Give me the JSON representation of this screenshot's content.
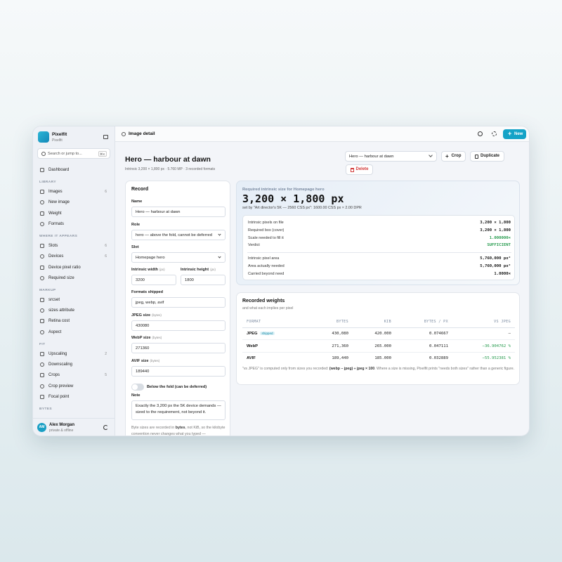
{
  "app": {
    "name": "Pixelfit",
    "sub": "Pixelfit"
  },
  "search": {
    "placeholder": "Search or jump to...",
    "shortcut": "⌘K"
  },
  "nav": [
    {
      "items": [
        {
          "label": "Dashboard"
        }
      ]
    },
    {
      "title": "LIBRARY",
      "items": [
        {
          "label": "Images",
          "count": 6
        },
        {
          "label": "New image"
        },
        {
          "label": "Weight"
        },
        {
          "label": "Formats"
        }
      ]
    },
    {
      "title": "WHERE IT APPEARS",
      "items": [
        {
          "label": "Slots",
          "count": 6
        },
        {
          "label": "Devices",
          "count": 6
        },
        {
          "label": "Device pixel ratio"
        },
        {
          "label": "Required size"
        }
      ]
    },
    {
      "title": "MARKUP",
      "items": [
        {
          "label": "srcset"
        },
        {
          "label": "sizes attribute"
        },
        {
          "label": "Retina cost"
        },
        {
          "label": "Aspect"
        }
      ]
    },
    {
      "title": "FIT",
      "items": [
        {
          "label": "Upscaling",
          "count": 2
        },
        {
          "label": "Downscaling"
        },
        {
          "label": "Crops",
          "count": 5
        },
        {
          "label": "Crop preview"
        },
        {
          "label": "Focal point"
        }
      ]
    },
    {
      "title": "BYTES",
      "items": []
    }
  ],
  "user": {
    "initials": "AM",
    "name": "Alex Morgan",
    "status": "private & offline"
  },
  "topbar": {
    "title": "Image detail",
    "new": "New"
  },
  "header": {
    "title": "Hero — harbour at dawn",
    "meta": "Intrinsic 3,200 × 1,800 px · 5.760 MP · 3 recorded formats",
    "select": "Hero — harbour at dawn",
    "crop": "Crop",
    "duplicate": "Duplicate",
    "delete": "Delete"
  },
  "record": {
    "title": "Record",
    "fields": [
      {
        "label": "Name",
        "value": "Hero — harbour at dawn"
      },
      {
        "label": "Role",
        "value": "hero — above the fold, cannot be deferred",
        "kind": "select"
      },
      {
        "label": "Slot",
        "value": "Homepage hero",
        "kind": "select"
      }
    ],
    "dims": [
      {
        "label": "Intrinsic width",
        "unit": "(px)",
        "value": 3200
      },
      {
        "label": "Intrinsic height",
        "unit": "(px)",
        "value": 1800
      }
    ],
    "sizes": [
      {
        "label": "Formats shipped",
        "value": "jpeg, webp, avif"
      },
      {
        "label": "JPEG size",
        "unit": "(bytes)",
        "value": 430080
      },
      {
        "label": "WebP size",
        "unit": "(bytes)",
        "value": 271360
      },
      {
        "label": "AVIF size",
        "unit": "(bytes)",
        "value": 189440
      }
    ],
    "toggle": "Below the fold (can be deferred)",
    "note_label": "Note",
    "note": "Exactly the 3,200 px the 5K device demands — sized to the requirement, not beyond it.",
    "footnote": [
      "Byte sizes are recorded in ",
      "bytes",
      ", not KiB, so the kilobyte convention never changes what you typed —"
    ]
  },
  "required": {
    "label": "Required intrinsic size for Homepage hero",
    "value": "3,200 × 1,800 px",
    "sub": "set by \"Art director's 5K — 2560 CSS px\": 1600.00 CSS px × 2.00 DPR",
    "rows": [
      [
        "Intrinsic pixels on file",
        "3,200 × 1,800"
      ],
      [
        "Required box (cover)",
        "3,200 × 1,800"
      ],
      [
        "Scale needed to fill it",
        "1.000000×"
      ],
      [
        "Verdict",
        "SUFFICIENT"
      ]
    ],
    "rows2": [
      [
        "Intrinsic pixel area",
        "5,760,000 px²"
      ],
      [
        "Area actually needed",
        "5,760,000 px²"
      ],
      [
        "Carried beyond need",
        "1.0000×"
      ]
    ]
  },
  "weights": {
    "title": "Recorded weights",
    "sub": "and what each implies per pixel",
    "columns": [
      "FORMAT",
      "BYTES",
      "KIB",
      "BYTES / PX",
      "VS JPEG"
    ],
    "rows": [
      [
        "JPEG",
        "430,080",
        "420.000",
        "0.074667",
        "–"
      ],
      [
        "WebP",
        "271,360",
        "265.000",
        "0.047111",
        "−36.904762 %"
      ],
      [
        "AVIF",
        "189,440",
        "185.000",
        "0.032889",
        "−55.952381 %"
      ]
    ],
    "tag": "shipped",
    "footnote": [
      "\"vs JPEG\" is computed only from sizes you recorded: ",
      "(webp − jpeg) ÷ jpeg × 100",
      ". Where a size is missing, Pixelfit prints \"needs both sizes\" rather than a generic figure."
    ]
  }
}
